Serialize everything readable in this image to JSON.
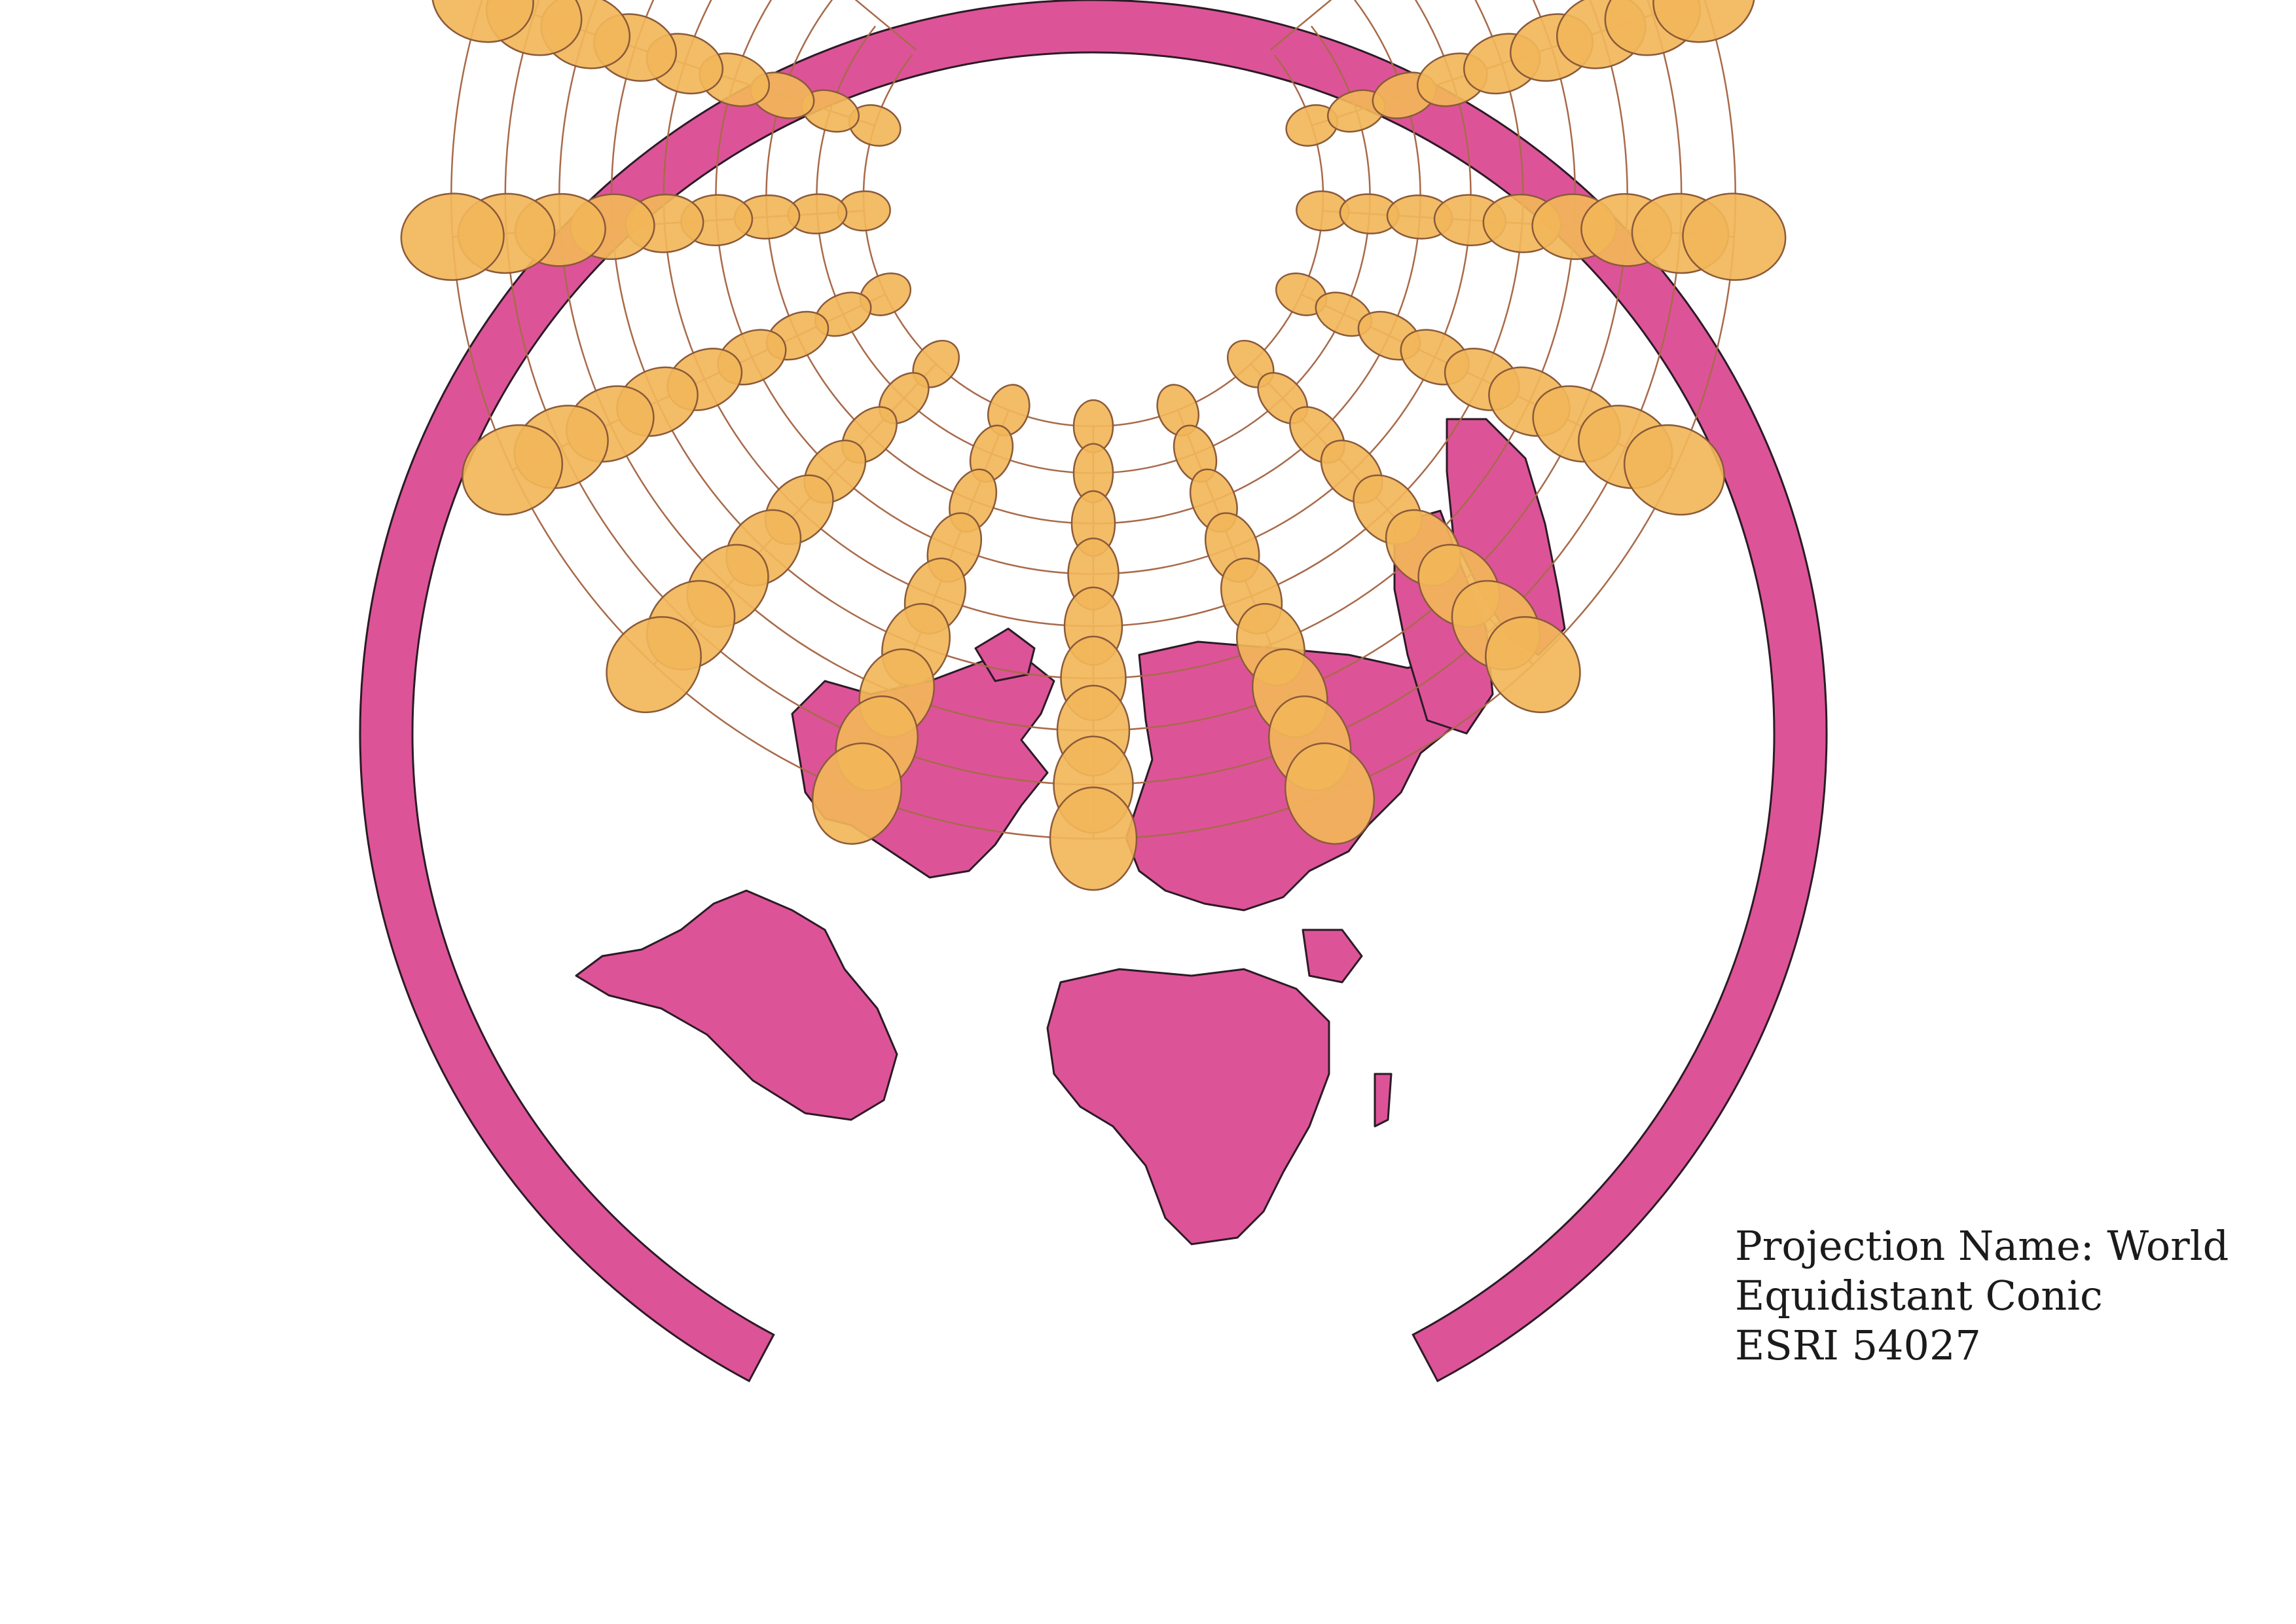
{
  "caption": {
    "line1": "Projection Name: World",
    "line2": "Equidistant Conic",
    "line3": "ESRI 54027"
  },
  "colors": {
    "land": "#dd5398",
    "outline": "#2b1b25",
    "ellipse_fill": "#f2b659",
    "ellipse_stroke": "#8a5a3a",
    "graticule": "#a86a4a",
    "background": "#ffffff"
  },
  "graticule": {
    "parallels_deg": [
      75,
      60,
      45,
      30,
      15,
      0,
      -15,
      -30,
      -45,
      -60
    ],
    "meridians_deg": [
      -180,
      -150,
      -120,
      -90,
      -60,
      -30,
      0,
      30,
      60,
      90,
      120,
      150,
      180
    ]
  },
  "indicatrix": {
    "type": "tissot",
    "latitudes": [
      75,
      60,
      45,
      30,
      15,
      0,
      -15,
      -30,
      -45,
      -60
    ],
    "longitudes": [
      -150,
      -120,
      -90,
      -60,
      -30,
      0,
      30,
      60,
      90,
      120,
      150
    ]
  }
}
